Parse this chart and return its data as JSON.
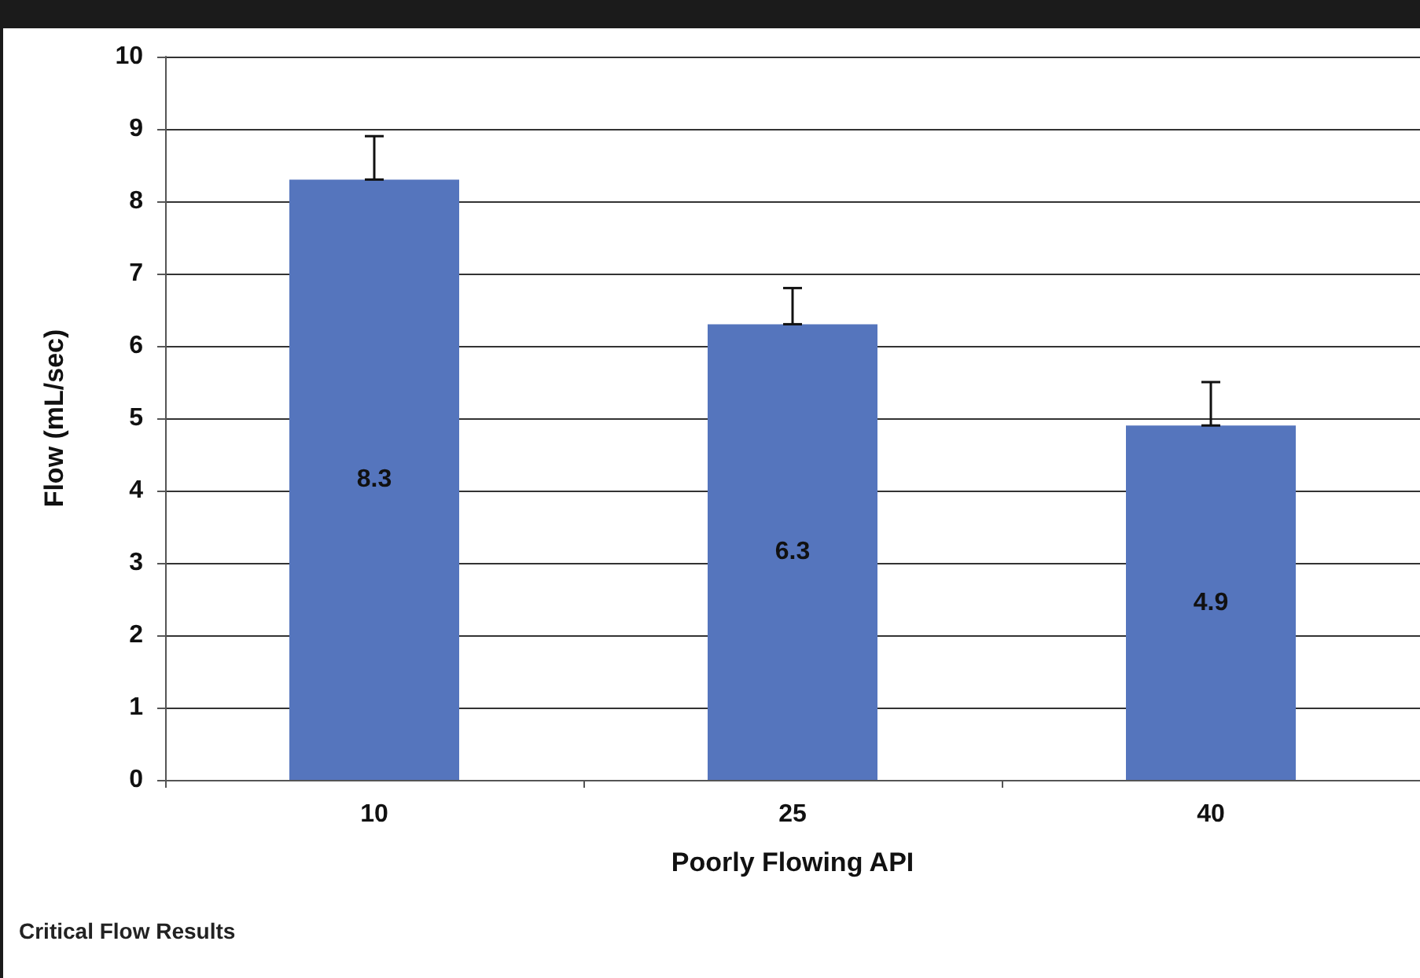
{
  "chart_data": {
    "type": "bar",
    "categories": [
      "10",
      "25",
      "40"
    ],
    "values": [
      8.3,
      6.3,
      4.9
    ],
    "errors": [
      [
        8.3,
        8.9
      ],
      [
        6.3,
        6.8
      ],
      [
        4.9,
        5.5
      ]
    ],
    "color": "#5575bd",
    "data_labels": true,
    "xlabel": "Poorly Flowing API",
    "ylabel": "Flow (mL/sec)",
    "ylim": [
      0,
      10
    ],
    "yticks": [
      0,
      1,
      2,
      3,
      4,
      5,
      6,
      7,
      8,
      9,
      10
    ],
    "grid": "y",
    "annotations": [
      "Critical Flow Results"
    ]
  }
}
